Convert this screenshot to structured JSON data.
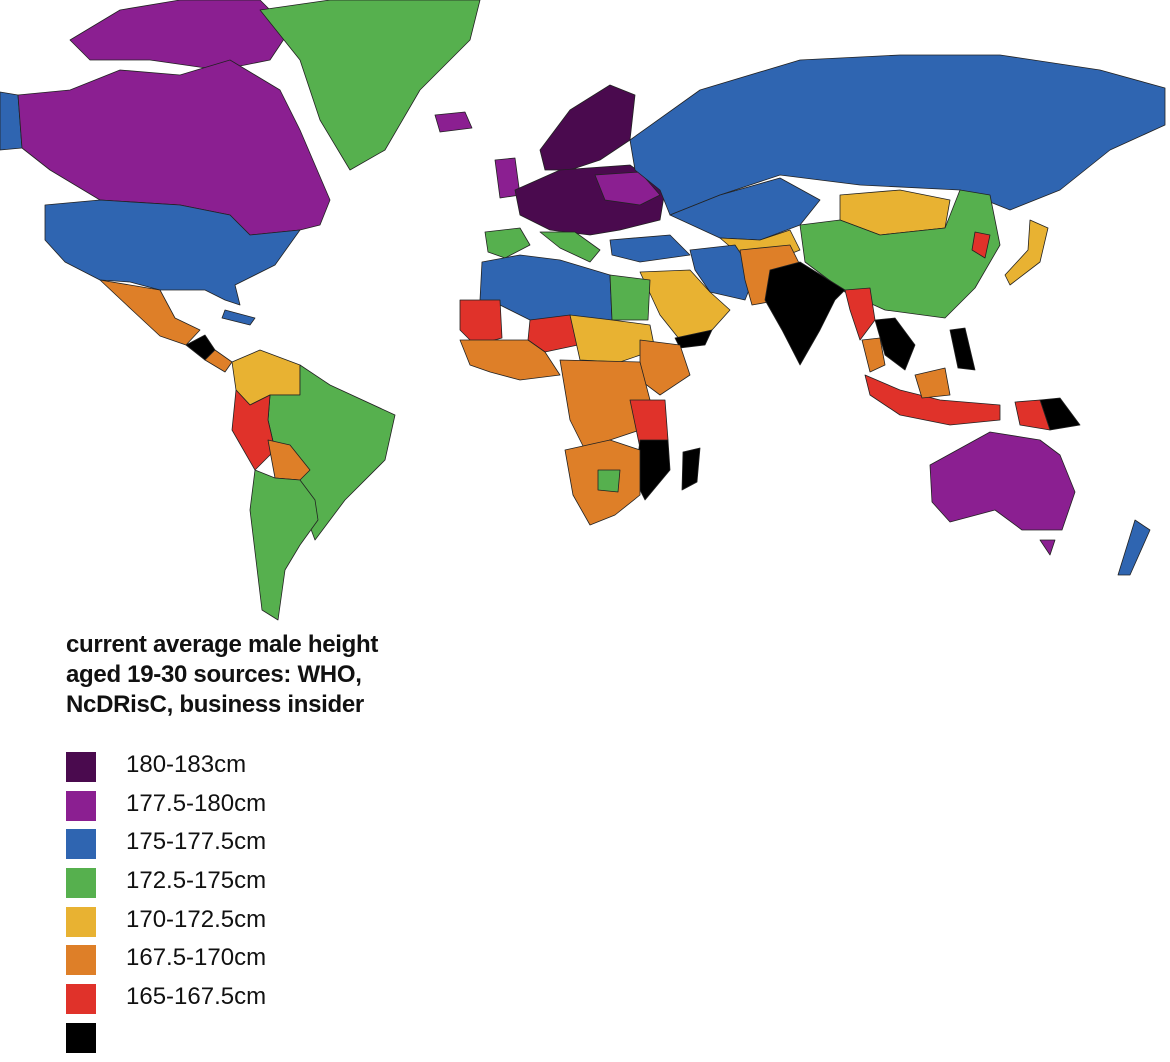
{
  "title": {
    "lines": [
      "current average male height",
      "aged 19-30 sources: WHO,",
      "NcDRisC, business insider"
    ]
  },
  "legend": [
    {
      "label": "180-183cm",
      "color": "#4a0a4e"
    },
    {
      "label": "177.5-180cm",
      "color": "#8b1f91"
    },
    {
      "label": "175-177.5cm",
      "color": "#2f65b1"
    },
    {
      "label": "172.5-175cm",
      "color": "#56b04e"
    },
    {
      "label": "170-172.5cm",
      "color": "#e8b232"
    },
    {
      "label": "167.5-170cm",
      "color": "#de7f28"
    },
    {
      "label": "165-167.5cm",
      "color": "#e0322a"
    },
    {
      "label": "",
      "color": "#000000"
    }
  ],
  "no_data_color": "#d9dde0"
}
